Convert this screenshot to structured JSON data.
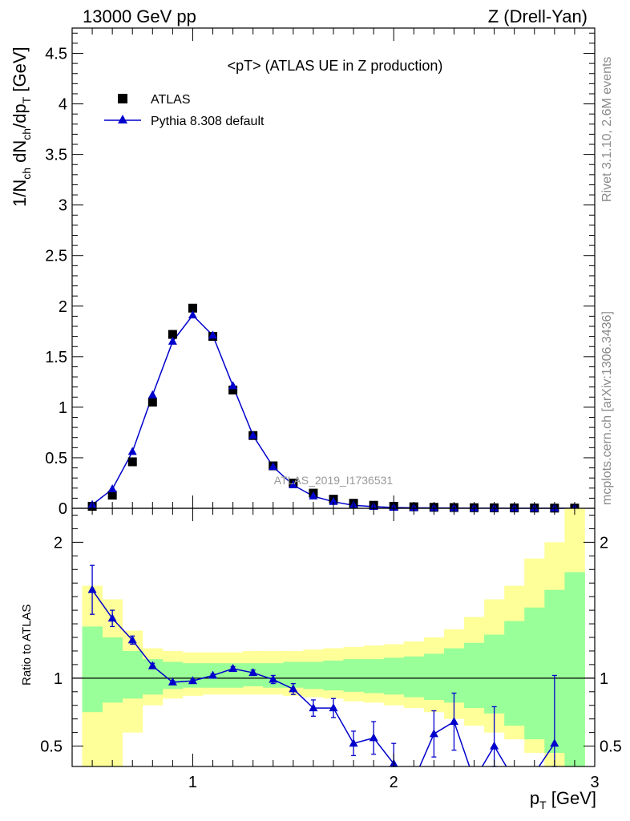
{
  "header": {
    "left": "13000 GeV pp",
    "right": "Z (Drell-Yan)"
  },
  "side_labels": {
    "rivet": "Rivet 3.1.10,  2.6M events",
    "mcplots": "mcplots.cern.ch [arXiv:1306.3436]"
  },
  "chart_data": [
    {
      "type": "scatter",
      "panel": "main",
      "title": "<pT> (ATLAS UE in Z production)",
      "watermark": "ATLAS_2019_I1736531",
      "ylabel": "1/N_ch dN_ch/dp_T [GeV]",
      "xlim": [
        0.4,
        3.0
      ],
      "ylim": [
        0,
        4.75
      ],
      "yticks": [
        "0",
        "0.5",
        "1",
        "1.5",
        "2",
        "2.5",
        "3",
        "3.5",
        "4",
        "4.5"
      ],
      "ytick_values": [
        0,
        0.5,
        1,
        1.5,
        2,
        2.5,
        3,
        3.5,
        4,
        4.5
      ],
      "legend_position": "top-left",
      "series": [
        {
          "name": "ATLAS",
          "style": "markers",
          "color": "#000000",
          "x": [
            0.5,
            0.6,
            0.7,
            0.8,
            0.9,
            1.0,
            1.1,
            1.2,
            1.3,
            1.4,
            1.5,
            1.6,
            1.7,
            1.8,
            1.9,
            2.0,
            2.1,
            2.2,
            2.3,
            2.4,
            2.5,
            2.6,
            2.7,
            2.8,
            2.9
          ],
          "y": [
            0.02,
            0.13,
            0.46,
            1.05,
            1.72,
            1.98,
            1.7,
            1.17,
            0.72,
            0.42,
            0.25,
            0.15,
            0.09,
            0.05,
            0.03,
            0.02,
            0.015,
            0.01,
            0.008,
            0.006,
            0.005,
            0.004,
            0.003,
            0.002,
            0.002
          ]
        },
        {
          "name": "Pythia 8.308 default",
          "style": "line+triangles",
          "color": "#0000cc",
          "x": [
            0.5,
            0.6,
            0.7,
            0.8,
            0.9,
            1.0,
            1.1,
            1.2,
            1.3,
            1.4,
            1.5,
            1.6,
            1.7,
            1.8,
            1.9,
            2.0,
            2.1,
            2.2,
            2.3,
            2.4,
            2.5,
            2.6,
            2.7,
            2.8,
            2.9
          ],
          "y": [
            0.035,
            0.19,
            0.56,
            1.12,
            1.65,
            1.91,
            1.71,
            1.21,
            0.72,
            0.41,
            0.23,
            0.12,
            0.065,
            0.03,
            0.017,
            0.008,
            0.005,
            0.004,
            0.003,
            0.002,
            0.0015,
            0.001,
            0.001,
            0.001,
            0.001
          ]
        }
      ]
    },
    {
      "type": "line",
      "panel": "ratio",
      "ylabel": "Ratio to ATLAS",
      "xlabel": "p_T [GeV]",
      "xlim": [
        0.4,
        3.0
      ],
      "ylim": [
        0.35,
        2.25
      ],
      "xticks": [
        "1",
        "2",
        "3"
      ],
      "xtick_values": [
        1,
        2,
        3
      ],
      "yticks": [
        "0.5",
        "1",
        "2"
      ],
      "ytick_values": [
        0.5,
        1,
        2
      ],
      "reference_line": 1,
      "bands": {
        "bin_edges": [
          0.45,
          0.55,
          0.65,
          0.75,
          0.85,
          0.95,
          1.05,
          1.15,
          1.25,
          1.35,
          1.45,
          1.55,
          1.65,
          1.75,
          1.85,
          1.95,
          2.05,
          2.15,
          2.25,
          2.35,
          2.45,
          2.55,
          2.65,
          2.75,
          2.85,
          2.95
        ],
        "yellow_color": "#ffff99",
        "green_color": "#99ff99",
        "yellow_low": [
          0.35,
          0.35,
          0.6,
          0.8,
          0.85,
          0.87,
          0.88,
          0.88,
          0.88,
          0.88,
          0.87,
          0.86,
          0.85,
          0.83,
          0.82,
          0.8,
          0.78,
          0.75,
          0.7,
          0.65,
          0.6,
          0.55,
          0.45,
          0.35,
          0.35
        ],
        "yellow_high": [
          1.68,
          1.58,
          1.35,
          1.22,
          1.2,
          1.19,
          1.19,
          1.19,
          1.2,
          1.2,
          1.2,
          1.21,
          1.22,
          1.23,
          1.24,
          1.25,
          1.27,
          1.3,
          1.36,
          1.45,
          1.58,
          1.68,
          1.88,
          2.0,
          2.28
        ],
        "green_low": [
          0.75,
          0.82,
          0.85,
          0.88,
          0.92,
          0.93,
          0.93,
          0.93,
          0.94,
          0.93,
          0.93,
          0.92,
          0.91,
          0.9,
          0.89,
          0.88,
          0.86,
          0.84,
          0.82,
          0.78,
          0.74,
          0.65,
          0.55,
          0.45,
          0.35
        ],
        "green_high": [
          1.38,
          1.3,
          1.2,
          1.14,
          1.12,
          1.11,
          1.11,
          1.11,
          1.11,
          1.11,
          1.12,
          1.12,
          1.13,
          1.14,
          1.14,
          1.15,
          1.16,
          1.18,
          1.22,
          1.26,
          1.32,
          1.42,
          1.52,
          1.65,
          1.78
        ]
      },
      "series": [
        {
          "name": "Pythia 8.308 default",
          "color": "#0000cc",
          "x": [
            0.5,
            0.6,
            0.7,
            0.8,
            0.9,
            1.0,
            1.1,
            1.2,
            1.3,
            1.4,
            1.5,
            1.6,
            1.7,
            1.8,
            1.9,
            2.0,
            2.1,
            2.2,
            2.3,
            2.4,
            2.5,
            2.6,
            2.7,
            2.8
          ],
          "y": [
            1.65,
            1.44,
            1.28,
            1.09,
            0.97,
            0.98,
            1.02,
            1.07,
            1.04,
            0.99,
            0.92,
            0.78,
            0.78,
            0.52,
            0.56,
            0.37,
            0.25,
            0.59,
            0.68,
            0.25,
            0.5,
            0.25,
            0.3,
            0.52
          ],
          "err": [
            0.18,
            0.06,
            0.03,
            0.02,
            0.01,
            0.01,
            0.01,
            0.015,
            0.02,
            0.03,
            0.04,
            0.06,
            0.07,
            0.09,
            0.12,
            0.15,
            0.18,
            0.17,
            0.21,
            0.25,
            0.29,
            0.3,
            0.3,
            0.5
          ]
        }
      ]
    }
  ]
}
